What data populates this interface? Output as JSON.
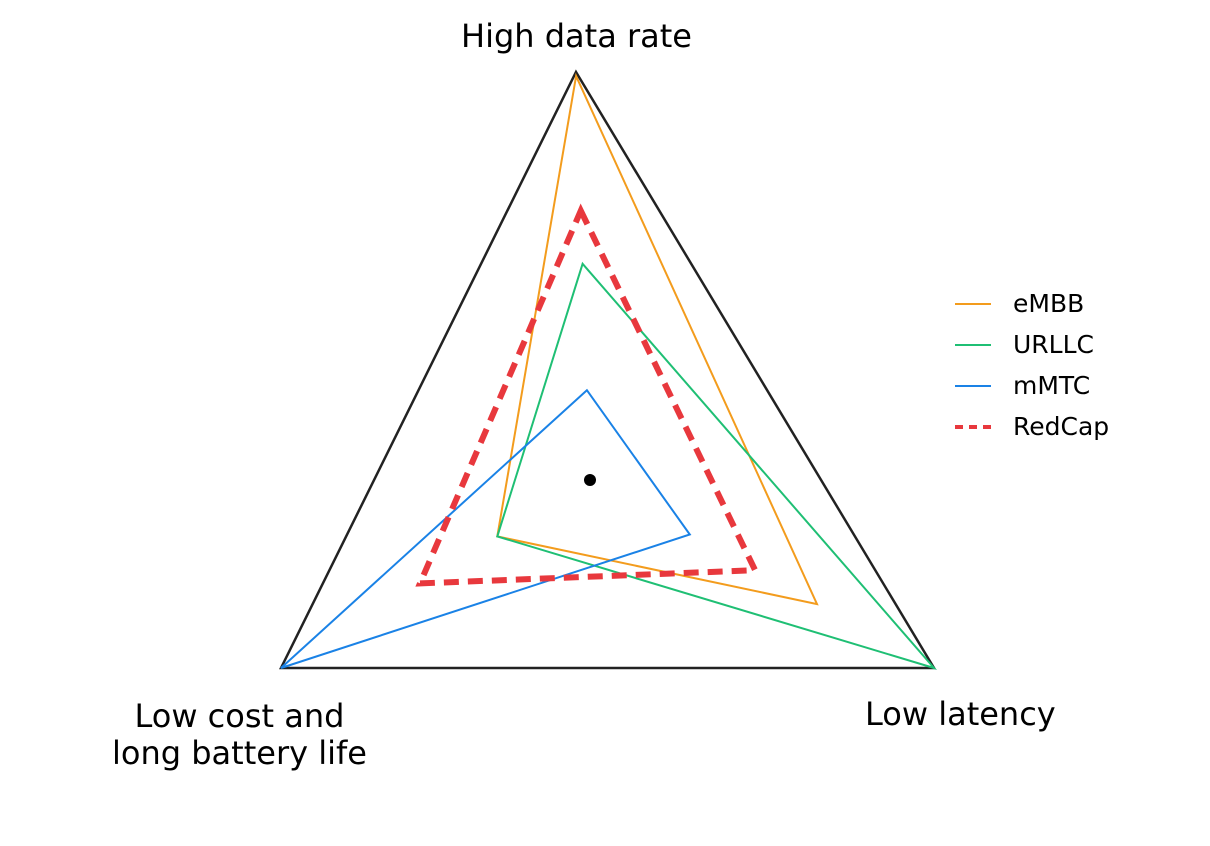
{
  "chart_data": {
    "type": "radar",
    "axes": [
      "High data rate",
      "Low latency",
      "Low cost and\nlong battery life"
    ],
    "range": [
      0,
      1
    ],
    "series": [
      {
        "name": "eMBB",
        "color": "#f39c1d",
        "style": "solid",
        "values": [
          0.99,
          0.66,
          0.3
        ]
      },
      {
        "name": "URLLC",
        "color": "#1fbf74",
        "style": "solid",
        "values": [
          0.53,
          1.0,
          0.3
        ]
      },
      {
        "name": "mMTC",
        "color": "#1a82e6",
        "style": "solid",
        "values": [
          0.22,
          0.29,
          1.0
        ]
      },
      {
        "name": "RedCap",
        "color": "#e8383d",
        "style": "dashed",
        "values": [
          0.66,
          0.48,
          0.55
        ]
      }
    ],
    "legend_position": "right",
    "center_marker": true
  }
}
